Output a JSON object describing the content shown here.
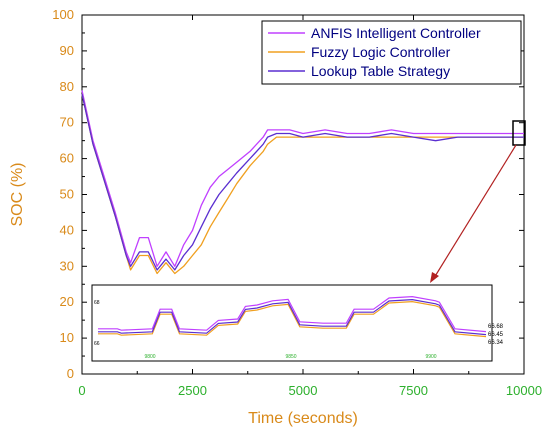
{
  "chart_data": {
    "type": "line",
    "xlabel": "Time (seconds)",
    "ylabel": "SOC (%)",
    "xlim": [
      0,
      10000
    ],
    "ylim": [
      0,
      100
    ],
    "x_ticks": [
      "0",
      "2500",
      "5000",
      "7500",
      "10000"
    ],
    "y_ticks": [
      "0",
      "10",
      "20",
      "30",
      "40",
      "50",
      "60",
      "70",
      "80",
      "90",
      "100"
    ],
    "legend_position": "top-right",
    "grid": false,
    "colors": {
      "axis_text": "#d98a1a",
      "x_ticks": "#2db02d",
      "axes": "#000000",
      "annotation_arrow": "#b22222",
      "inset_ticks": "#2db02d"
    },
    "series": [
      {
        "name": "ANFIS Intelligent Controller",
        "color": "#c040ff",
        "x": [
          0,
          250,
          500,
          750,
          1000,
          1100,
          1300,
          1500,
          1700,
          1900,
          2100,
          2300,
          2500,
          2700,
          2900,
          3100,
          3300,
          3500,
          3800,
          4100,
          4200,
          4400,
          4700,
          5000,
          5500,
          6000,
          6500,
          7000,
          7500,
          8000,
          8500,
          9000,
          9500,
          10000
        ],
        "y": [
          79,
          65,
          55,
          45,
          34,
          31,
          38,
          38,
          30,
          34,
          30,
          36,
          40,
          47,
          52,
          55,
          57,
          59,
          62,
          66,
          68,
          68,
          68,
          67,
          68,
          67,
          67,
          68,
          67,
          67,
          67,
          67,
          67,
          67
        ]
      },
      {
        "name": "Fuzzy Logic Controller",
        "color": "#f0a020",
        "x": [
          0,
          250,
          500,
          750,
          1000,
          1100,
          1300,
          1500,
          1700,
          1900,
          2100,
          2300,
          2500,
          2700,
          2900,
          3100,
          3300,
          3500,
          3800,
          4100,
          4200,
          4400,
          4700,
          5000,
          5500,
          6000,
          6500,
          7000,
          7500,
          8000,
          8500,
          9000,
          9500,
          10000
        ],
        "y": [
          78,
          64,
          54,
          44,
          33,
          29,
          33,
          33,
          28,
          31,
          28,
          30,
          33,
          36,
          41,
          45,
          49,
          53,
          58,
          62,
          64,
          66,
          66,
          66,
          66,
          66,
          66,
          66,
          66,
          66,
          66,
          66,
          66,
          66
        ]
      },
      {
        "name": "Lookup Table Strategy",
        "color": "#5a2fd0",
        "x": [
          0,
          250,
          500,
          750,
          1000,
          1100,
          1300,
          1500,
          1700,
          1900,
          2100,
          2300,
          2500,
          2700,
          2900,
          3100,
          3300,
          3500,
          3800,
          4100,
          4200,
          4400,
          4700,
          5000,
          5500,
          6000,
          6500,
          7000,
          7500,
          8000,
          8500,
          9000,
          9500,
          10000
        ],
        "y": [
          78,
          64,
          54,
          44,
          33,
          30,
          34,
          34,
          29,
          32,
          29,
          33,
          36,
          41,
          46,
          50,
          53,
          56,
          60,
          64,
          66,
          67,
          67,
          66,
          67,
          66,
          66,
          67,
          66,
          65,
          66,
          66,
          66,
          66
        ]
      }
    ],
    "inset": {
      "x_ticks": [
        "9800",
        "9850",
        "9900"
      ],
      "y_ticks": [
        "66",
        "68"
      ],
      "value_labels": [
        "66.68",
        "66.45",
        "66.34"
      ]
    }
  }
}
